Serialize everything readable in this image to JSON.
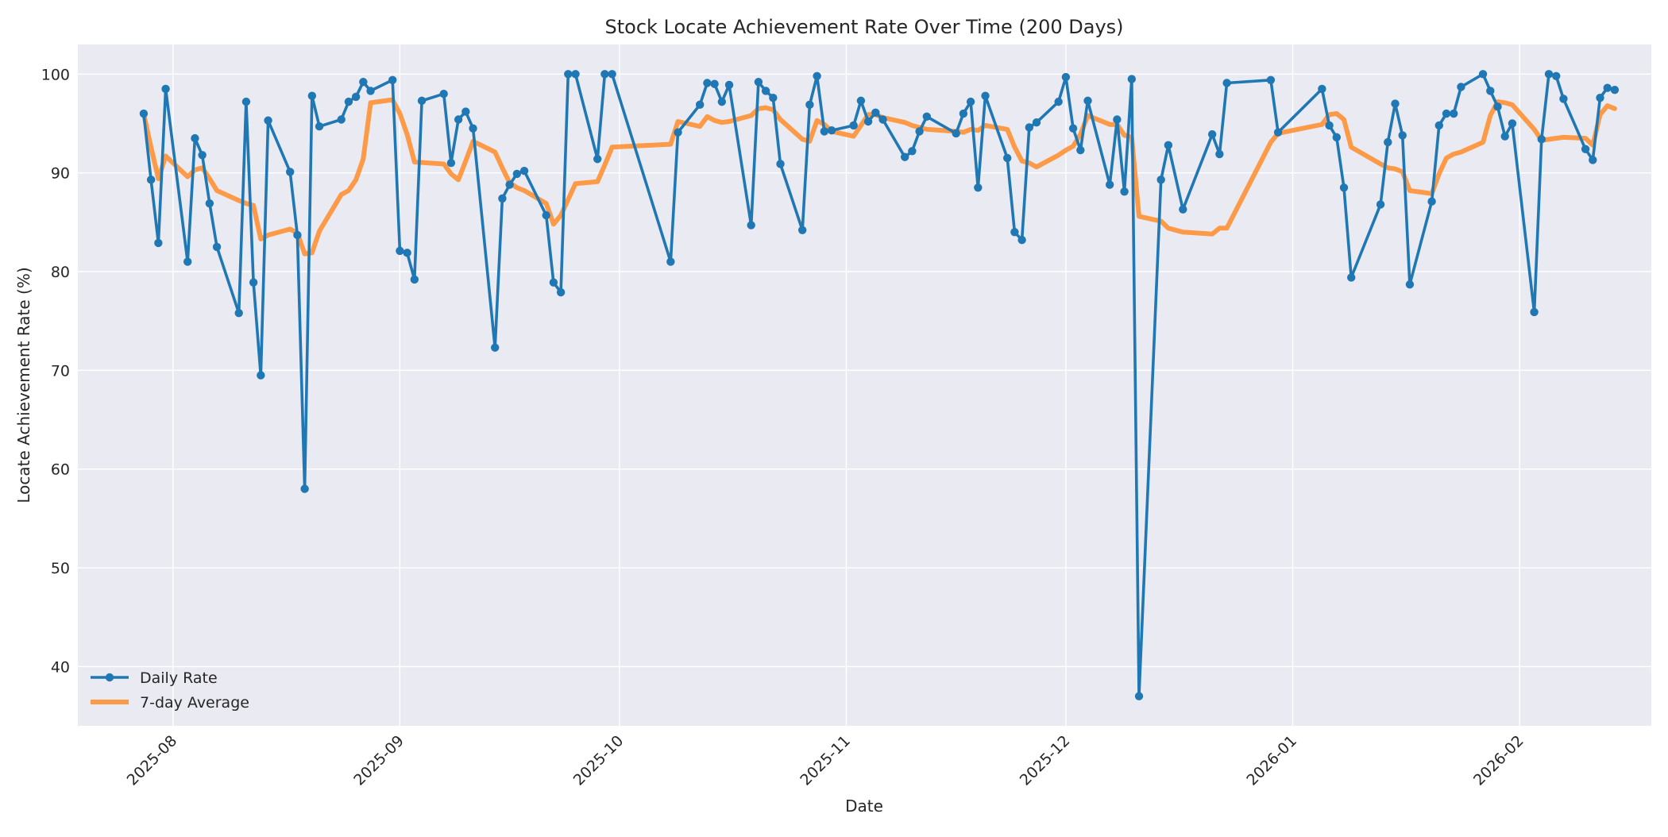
{
  "chart_data": {
    "type": "line",
    "title": "Stock Locate Achievement Rate Over Time (200 Days)",
    "xlabel": "Date",
    "ylabel": "Locate Achievement Rate (%)",
    "xlim": [
      "2025-07-19",
      "2026-02-19"
    ],
    "ylim": [
      34,
      103
    ],
    "x_ticks": [
      "2025-08",
      "2025-09",
      "2025-10",
      "2025-11",
      "2025-12",
      "2026-01",
      "2026-02"
    ],
    "y_ticks": [
      40,
      50,
      60,
      70,
      80,
      90,
      100
    ],
    "grid": true,
    "legend_position": "lower-left",
    "series": [
      {
        "name": "Daily Rate",
        "color": "#1f77b4",
        "marker": "circle",
        "points": [
          [
            "2025-07-28",
            96.0
          ],
          [
            "2025-07-29",
            89.3
          ],
          [
            "2025-07-30",
            82.9
          ],
          [
            "2025-07-31",
            98.5
          ],
          [
            "2025-08-03",
            81.0
          ],
          [
            "2025-08-04",
            93.5
          ],
          [
            "2025-08-05",
            91.8
          ],
          [
            "2025-08-06",
            86.9
          ],
          [
            "2025-08-07",
            82.5
          ],
          [
            "2025-08-10",
            75.8
          ],
          [
            "2025-08-11",
            97.2
          ],
          [
            "2025-08-12",
            78.9
          ],
          [
            "2025-08-13",
            69.5
          ],
          [
            "2025-08-14",
            95.3
          ],
          [
            "2025-08-17",
            90.1
          ],
          [
            "2025-08-18",
            83.7
          ],
          [
            "2025-08-19",
            58.0
          ],
          [
            "2025-08-20",
            97.8
          ],
          [
            "2025-08-21",
            94.7
          ],
          [
            "2025-08-24",
            95.4
          ],
          [
            "2025-08-25",
            97.2
          ],
          [
            "2025-08-26",
            97.7
          ],
          [
            "2025-08-27",
            99.2
          ],
          [
            "2025-08-28",
            98.3
          ],
          [
            "2025-08-31",
            99.4
          ],
          [
            "2025-09-01",
            82.1
          ],
          [
            "2025-09-02",
            81.9
          ],
          [
            "2025-09-03",
            79.2
          ],
          [
            "2025-09-04",
            97.3
          ],
          [
            "2025-09-07",
            98.0
          ],
          [
            "2025-09-08",
            91.0
          ],
          [
            "2025-09-09",
            95.4
          ],
          [
            "2025-09-10",
            96.2
          ],
          [
            "2025-09-11",
            94.5
          ],
          [
            "2025-09-14",
            72.3
          ],
          [
            "2025-09-15",
            87.4
          ],
          [
            "2025-09-16",
            88.8
          ],
          [
            "2025-09-17",
            89.9
          ],
          [
            "2025-09-18",
            90.2
          ],
          [
            "2025-09-21",
            85.7
          ],
          [
            "2025-09-22",
            78.9
          ],
          [
            "2025-09-23",
            77.9
          ],
          [
            "2025-09-24",
            100.0
          ],
          [
            "2025-09-25",
            100.0
          ],
          [
            "2025-09-28",
            91.4
          ],
          [
            "2025-09-29",
            100.0
          ],
          [
            "2025-09-30",
            100.0
          ],
          [
            "2025-10-08",
            81.0
          ],
          [
            "2025-10-09",
            94.1
          ],
          [
            "2025-10-12",
            96.9
          ],
          [
            "2025-10-13",
            99.1
          ],
          [
            "2025-10-14",
            99.0
          ],
          [
            "2025-10-15",
            97.2
          ],
          [
            "2025-10-16",
            98.9
          ],
          [
            "2025-10-19",
            84.7
          ],
          [
            "2025-10-20",
            99.2
          ],
          [
            "2025-10-21",
            98.3
          ],
          [
            "2025-10-22",
            97.6
          ],
          [
            "2025-10-23",
            90.9
          ],
          [
            "2025-10-26",
            84.2
          ],
          [
            "2025-10-27",
            96.9
          ],
          [
            "2025-10-28",
            99.8
          ],
          [
            "2025-10-29",
            94.2
          ],
          [
            "2025-10-30",
            94.3
          ],
          [
            "2025-11-02",
            94.8
          ],
          [
            "2025-11-03",
            97.3
          ],
          [
            "2025-11-04",
            95.2
          ],
          [
            "2025-11-05",
            96.1
          ],
          [
            "2025-11-06",
            95.4
          ],
          [
            "2025-11-09",
            91.6
          ],
          [
            "2025-11-10",
            92.2
          ],
          [
            "2025-11-11",
            94.2
          ],
          [
            "2025-11-12",
            95.7
          ],
          [
            "2025-11-16",
            94.0
          ],
          [
            "2025-11-17",
            96.0
          ],
          [
            "2025-11-18",
            97.2
          ],
          [
            "2025-11-19",
            88.5
          ],
          [
            "2025-11-20",
            97.8
          ],
          [
            "2025-11-23",
            91.5
          ],
          [
            "2025-11-24",
            84.0
          ],
          [
            "2025-11-25",
            83.2
          ],
          [
            "2025-11-26",
            94.6
          ],
          [
            "2025-11-27",
            95.1
          ],
          [
            "2025-11-30",
            97.2
          ],
          [
            "2025-12-01",
            99.7
          ],
          [
            "2025-12-02",
            94.5
          ],
          [
            "2025-12-03",
            92.3
          ],
          [
            "2025-12-04",
            97.3
          ],
          [
            "2025-12-07",
            88.8
          ],
          [
            "2025-12-08",
            95.4
          ],
          [
            "2025-12-09",
            88.1
          ],
          [
            "2025-12-10",
            99.5
          ],
          [
            "2025-12-11",
            37.0
          ],
          [
            "2025-12-14",
            89.3
          ],
          [
            "2025-12-15",
            92.8
          ],
          [
            "2025-12-17",
            86.3
          ],
          [
            "2025-12-21",
            93.9
          ],
          [
            "2025-12-22",
            91.9
          ],
          [
            "2025-12-23",
            99.1
          ],
          [
            "2025-12-29",
            99.4
          ],
          [
            "2025-12-30",
            94.1
          ],
          [
            "2026-01-05",
            98.5
          ],
          [
            "2026-01-06",
            94.8
          ],
          [
            "2026-01-07",
            93.6
          ],
          [
            "2026-01-08",
            88.5
          ],
          [
            "2026-01-09",
            79.4
          ],
          [
            "2026-01-13",
            86.8
          ],
          [
            "2026-01-14",
            93.1
          ],
          [
            "2026-01-15",
            97.0
          ],
          [
            "2026-01-16",
            93.8
          ],
          [
            "2026-01-17",
            78.7
          ],
          [
            "2026-01-20",
            87.1
          ],
          [
            "2026-01-21",
            94.8
          ],
          [
            "2026-01-22",
            96.0
          ],
          [
            "2026-01-23",
            96.0
          ],
          [
            "2026-01-24",
            98.7
          ],
          [
            "2026-01-27",
            100.0
          ],
          [
            "2026-01-28",
            98.3
          ],
          [
            "2026-01-29",
            96.7
          ],
          [
            "2026-01-30",
            93.7
          ],
          [
            "2026-01-31",
            95.0
          ],
          [
            "2026-02-03",
            75.9
          ],
          [
            "2026-02-04",
            93.4
          ],
          [
            "2026-02-05",
            100.0
          ],
          [
            "2026-02-06",
            99.8
          ],
          [
            "2026-02-07",
            97.5
          ],
          [
            "2026-02-10",
            92.4
          ],
          [
            "2026-02-11",
            91.3
          ],
          [
            "2026-02-12",
            97.6
          ],
          [
            "2026-02-13",
            98.6
          ],
          [
            "2026-02-14",
            98.4
          ]
        ]
      },
      {
        "name": "7-day Average",
        "color": "#ff8c2a",
        "points": [
          [
            "2025-07-28",
            96.0
          ],
          [
            "2025-07-29",
            92.6
          ],
          [
            "2025-07-30",
            89.4
          ],
          [
            "2025-07-31",
            91.7
          ],
          [
            "2025-08-01",
            91.0
          ],
          [
            "2025-08-02",
            90.3
          ],
          [
            "2025-08-03",
            89.6
          ],
          [
            "2025-08-04",
            90.3
          ],
          [
            "2025-08-05",
            90.5
          ],
          [
            "2025-08-06",
            89.4
          ],
          [
            "2025-08-07",
            88.2
          ],
          [
            "2025-08-10",
            87.2
          ],
          [
            "2025-08-11",
            86.9
          ],
          [
            "2025-08-12",
            86.7
          ],
          [
            "2025-08-13",
            83.3
          ],
          [
            "2025-08-14",
            83.7
          ],
          [
            "2025-08-17",
            84.3
          ],
          [
            "2025-08-18",
            83.9
          ],
          [
            "2025-08-19",
            81.8
          ],
          [
            "2025-08-20",
            81.9
          ],
          [
            "2025-08-21",
            84.1
          ],
          [
            "2025-08-24",
            87.8
          ],
          [
            "2025-08-25",
            88.2
          ],
          [
            "2025-08-26",
            89.3
          ],
          [
            "2025-08-27",
            91.4
          ],
          [
            "2025-08-28",
            97.1
          ],
          [
            "2025-08-31",
            97.4
          ],
          [
            "2025-09-01",
            96.0
          ],
          [
            "2025-09-02",
            93.9
          ],
          [
            "2025-09-03",
            91.1
          ],
          [
            "2025-09-07",
            90.9
          ],
          [
            "2025-09-08",
            89.9
          ],
          [
            "2025-09-09",
            89.3
          ],
          [
            "2025-09-10",
            91.2
          ],
          [
            "2025-09-11",
            93.2
          ],
          [
            "2025-09-14",
            92.1
          ],
          [
            "2025-09-15",
            90.5
          ],
          [
            "2025-09-16",
            89.0
          ],
          [
            "2025-09-17",
            88.5
          ],
          [
            "2025-09-18",
            88.2
          ],
          [
            "2025-09-21",
            86.9
          ],
          [
            "2025-09-22",
            84.8
          ],
          [
            "2025-09-23",
            85.7
          ],
          [
            "2025-09-24",
            87.3
          ],
          [
            "2025-09-25",
            88.9
          ],
          [
            "2025-09-28",
            89.1
          ],
          [
            "2025-09-29",
            90.8
          ],
          [
            "2025-09-30",
            92.6
          ],
          [
            "2025-10-08",
            92.9
          ],
          [
            "2025-10-09",
            95.2
          ],
          [
            "2025-10-12",
            94.7
          ],
          [
            "2025-10-13",
            95.7
          ],
          [
            "2025-10-14",
            95.3
          ],
          [
            "2025-10-15",
            95.1
          ],
          [
            "2025-10-16",
            95.2
          ],
          [
            "2025-10-19",
            95.8
          ],
          [
            "2025-10-20",
            96.5
          ],
          [
            "2025-10-21",
            96.6
          ],
          [
            "2025-10-22",
            96.4
          ],
          [
            "2025-10-23",
            95.4
          ],
          [
            "2025-10-26",
            93.4
          ],
          [
            "2025-10-27",
            93.2
          ],
          [
            "2025-10-28",
            95.3
          ],
          [
            "2025-10-29",
            94.9
          ],
          [
            "2025-10-30",
            94.2
          ],
          [
            "2025-11-02",
            93.7
          ],
          [
            "2025-11-03",
            94.8
          ],
          [
            "2025-11-04",
            95.9
          ],
          [
            "2025-11-05",
            95.9
          ],
          [
            "2025-11-06",
            95.6
          ],
          [
            "2025-11-09",
            95.1
          ],
          [
            "2025-11-10",
            94.8
          ],
          [
            "2025-11-11",
            94.6
          ],
          [
            "2025-11-12",
            94.4
          ],
          [
            "2025-11-16",
            94.2
          ],
          [
            "2025-11-17",
            94.1
          ],
          [
            "2025-11-18",
            94.4
          ],
          [
            "2025-11-19",
            94.3
          ],
          [
            "2025-11-20",
            94.8
          ],
          [
            "2025-11-23",
            94.4
          ],
          [
            "2025-11-24",
            92.6
          ],
          [
            "2025-11-25",
            91.2
          ],
          [
            "2025-11-26",
            91.0
          ],
          [
            "2025-11-27",
            90.6
          ],
          [
            "2025-11-30",
            91.8
          ],
          [
            "2025-12-01",
            92.3
          ],
          [
            "2025-12-02",
            92.7
          ],
          [
            "2025-12-03",
            93.9
          ],
          [
            "2025-12-04",
            95.8
          ],
          [
            "2025-12-07",
            94.9
          ],
          [
            "2025-12-08",
            94.9
          ],
          [
            "2025-12-09",
            93.8
          ],
          [
            "2025-12-10",
            93.6
          ],
          [
            "2025-12-11",
            85.6
          ],
          [
            "2025-12-14",
            85.1
          ],
          [
            "2025-12-15",
            84.4
          ],
          [
            "2025-12-17",
            84.0
          ],
          [
            "2025-12-21",
            83.8
          ],
          [
            "2025-12-22",
            84.4
          ],
          [
            "2025-12-23",
            84.4
          ],
          [
            "2025-12-29",
            93.1
          ],
          [
            "2025-12-30",
            94.0
          ],
          [
            "2026-01-05",
            94.9
          ],
          [
            "2026-01-06",
            95.9
          ],
          [
            "2026-01-07",
            96.0
          ],
          [
            "2026-01-08",
            95.4
          ],
          [
            "2026-01-09",
            92.6
          ],
          [
            "2026-01-13",
            90.9
          ],
          [
            "2026-01-14",
            90.5
          ],
          [
            "2026-01-15",
            90.4
          ],
          [
            "2026-01-16",
            90.1
          ],
          [
            "2026-01-17",
            88.2
          ],
          [
            "2026-01-20",
            87.9
          ],
          [
            "2026-01-21",
            89.9
          ],
          [
            "2026-01-22",
            91.5
          ],
          [
            "2026-01-23",
            91.9
          ],
          [
            "2026-01-24",
            92.1
          ],
          [
            "2026-01-27",
            93.1
          ],
          [
            "2026-01-28",
            95.8
          ],
          [
            "2026-01-29",
            97.2
          ],
          [
            "2026-01-30",
            97.1
          ],
          [
            "2026-01-31",
            96.9
          ],
          [
            "2026-02-03",
            94.4
          ],
          [
            "2026-02-04",
            93.3
          ],
          [
            "2026-02-05",
            93.4
          ],
          [
            "2026-02-06",
            93.5
          ],
          [
            "2026-02-07",
            93.6
          ],
          [
            "2026-02-10",
            93.5
          ],
          [
            "2026-02-11",
            92.8
          ],
          [
            "2026-02-12",
            95.9
          ],
          [
            "2026-02-13",
            96.8
          ],
          [
            "2026-02-14",
            96.5
          ]
        ]
      }
    ]
  }
}
